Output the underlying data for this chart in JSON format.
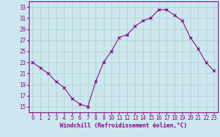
{
  "x": [
    0,
    1,
    2,
    3,
    4,
    5,
    6,
    7,
    8,
    9,
    10,
    11,
    12,
    13,
    14,
    15,
    16,
    17,
    18,
    19,
    20,
    21,
    22,
    23
  ],
  "y": [
    23,
    22,
    21,
    19.5,
    18.5,
    16.5,
    15.5,
    15,
    19.5,
    23,
    25,
    27.5,
    28,
    29.5,
    30.5,
    31,
    32.5,
    32.5,
    31.5,
    30.5,
    27.5,
    25.5,
    23,
    21.5
  ],
  "line_color": "#880088",
  "marker": "x",
  "marker_size": 3,
  "bg_color": "#cce8ee",
  "grid_color": "#aacccc",
  "xlabel": "Windchill (Refroidissement éolien,°C)",
  "xlim": [
    -0.5,
    23.5
  ],
  "ylim": [
    14,
    34
  ],
  "yticks": [
    15,
    17,
    19,
    21,
    23,
    25,
    27,
    29,
    31,
    33
  ],
  "xticks": [
    0,
    1,
    2,
    3,
    4,
    5,
    6,
    7,
    8,
    9,
    10,
    11,
    12,
    13,
    14,
    15,
    16,
    17,
    18,
    19,
    20,
    21,
    22,
    23
  ],
  "tick_label_color": "#880088",
  "axis_color": "#880088",
  "label_fontsize": 6,
  "tick_fontsize": 5.5
}
